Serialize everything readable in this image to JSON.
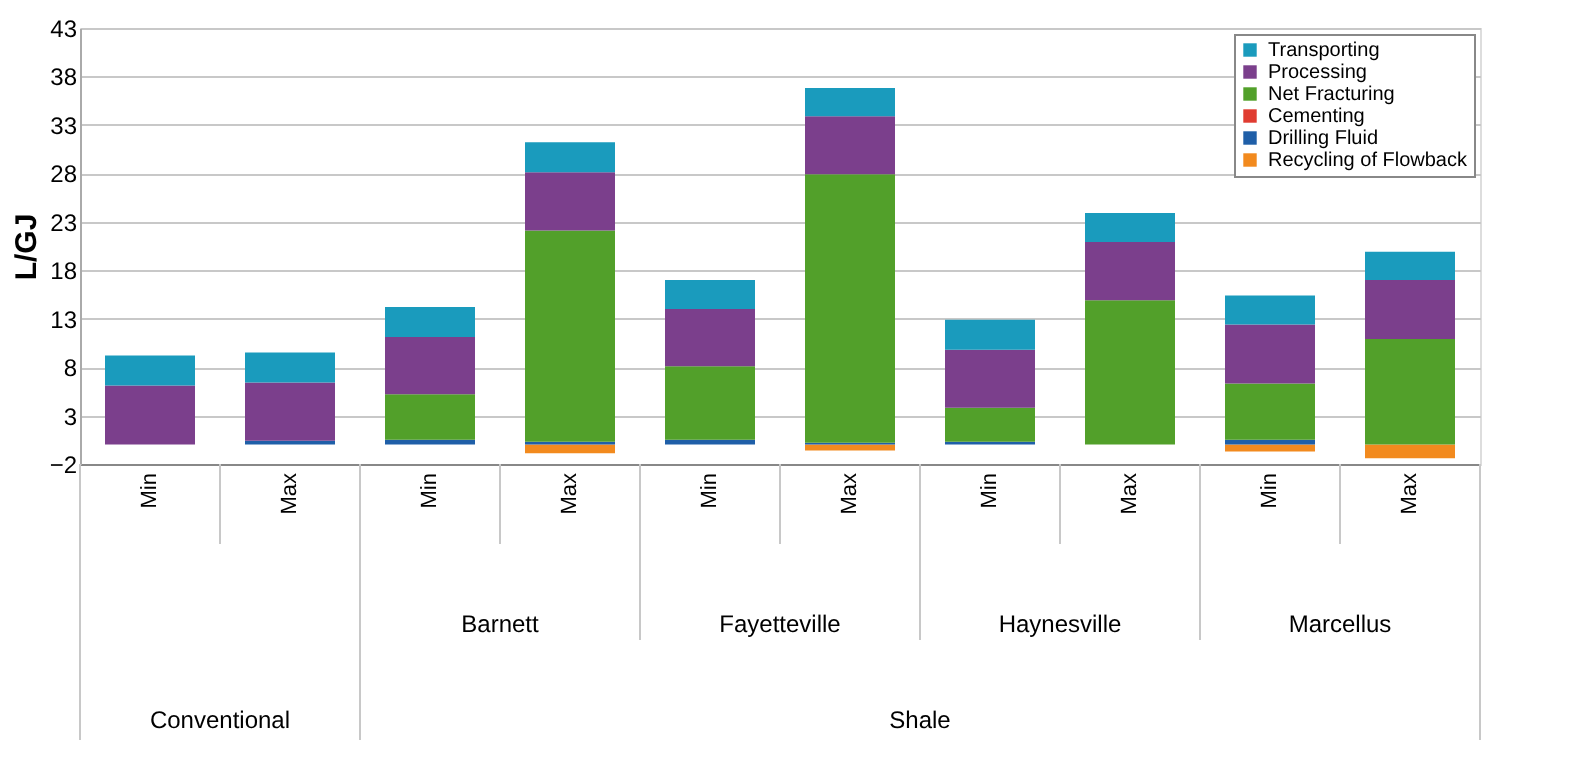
{
  "chart_data": {
    "type": "bar",
    "stacked": true,
    "ylabel": "L/GJ",
    "categories": [
      "Min",
      "Max",
      "Min",
      "Max",
      "Min",
      "Max",
      "Min",
      "Max",
      "Min",
      "Max"
    ],
    "series": [
      {
        "name": "Recycling of Flowback",
        "color": "#f28a1e",
        "values": [
          0,
          0,
          0,
          -0.9,
          0,
          -0.6,
          0,
          0,
          -0.7,
          -1.4
        ]
      },
      {
        "name": "Drilling Fluid",
        "color": "#1f5fa8",
        "values": [
          0,
          0.4,
          0.5,
          0.3,
          0.5,
          0.2,
          0.3,
          0,
          0.5,
          0
        ]
      },
      {
        "name": "Cementing",
        "color": "#e03c31",
        "values": [
          0,
          0,
          0,
          0,
          0,
          0,
          0,
          0,
          0,
          0
        ]
      },
      {
        "name": "Net Fracturing",
        "color": "#52a02a",
        "values": [
          0,
          0,
          4.7,
          21.8,
          7.6,
          27.7,
          3.5,
          14.9,
          5.8,
          10.9
        ]
      },
      {
        "name": "Processing",
        "color": "#7b3f8c",
        "values": [
          6.1,
          6.0,
          5.9,
          6.0,
          5.9,
          6.0,
          6.0,
          6.0,
          6.1,
          6.1
        ]
      },
      {
        "name": "Transporting",
        "color": "#1a9bbd",
        "values": [
          3.1,
          3.1,
          3.1,
          3.1,
          3.0,
          2.9,
          3.1,
          3.0,
          3.0,
          2.9
        ]
      }
    ],
    "annotations": [
      "Barnett",
      "Fayetteville",
      "Haynesville",
      "Marcellus",
      "Conventional",
      "Shale"
    ],
    "ylim": [
      -2,
      43
    ],
    "yticks": [
      -2,
      3,
      8,
      13,
      18,
      23,
      28,
      33,
      38,
      43
    ],
    "grid": "y",
    "legend": "top right"
  }
}
